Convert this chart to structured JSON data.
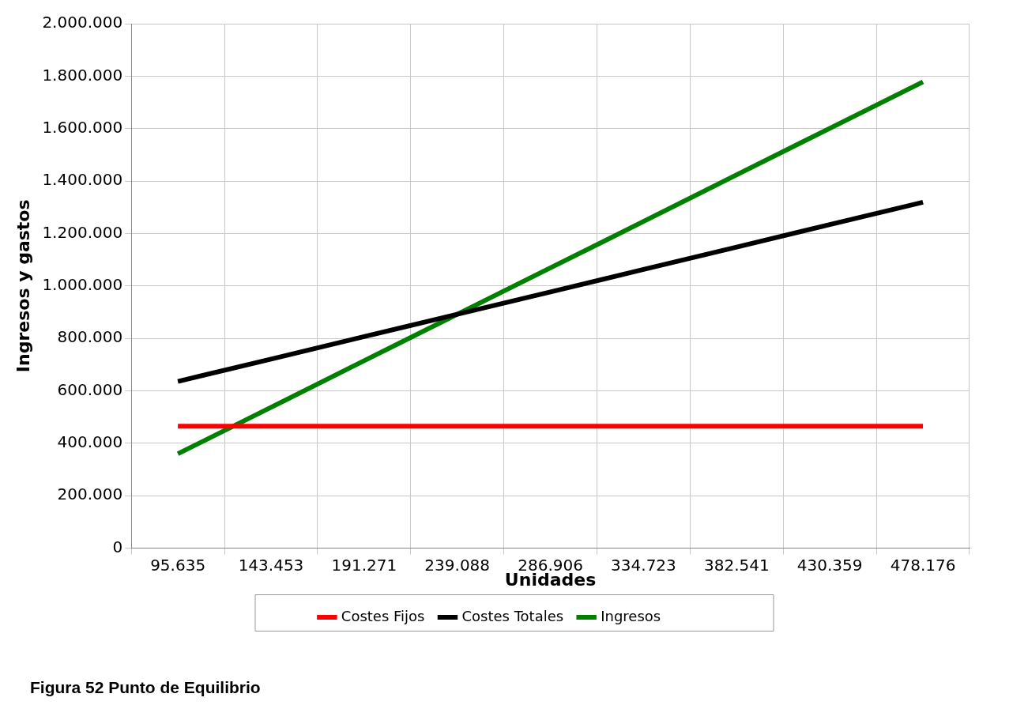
{
  "chart_data": {
    "type": "line",
    "xlabel": "Unidades",
    "ylabel": "Ingresos y gastos",
    "categories": [
      "95.635",
      "143.453",
      "191.271",
      "239.088",
      "286.906",
      "334.723",
      "382.541",
      "430.359",
      "478.176"
    ],
    "series": [
      {
        "name": "Costes Fijos",
        "color": "#ff0000",
        "values": [
          465000,
          465000,
          465000,
          465000,
          465000,
          465000,
          465000,
          465000,
          465000
        ]
      },
      {
        "name": "Costes Totales",
        "color": "#000000",
        "values": [
          636000,
          721000,
          807000,
          892000,
          977000,
          1063000,
          1148000,
          1234000,
          1319000
        ]
      },
      {
        "name": "Ingresos",
        "color": "#008000",
        "values": [
          360000,
          537000,
          715000,
          892000,
          1069000,
          1246000,
          1424000,
          1601000,
          1778000
        ]
      }
    ],
    "ylim": [
      0,
      2000000
    ],
    "yticks": [
      0,
      {
        "value": 200000,
        "label": "200.000"
      },
      {
        "value": 400000,
        "label": "400.000"
      },
      {
        "value": 600000,
        "label": "600.000"
      },
      {
        "value": 800000,
        "label": "800.000"
      },
      {
        "value": 1000000,
        "label": "1.000.000"
      },
      {
        "value": 1200000,
        "label": "1.200.000"
      },
      {
        "value": 1400000,
        "label": "1.400.000"
      },
      {
        "value": 1600000,
        "label": "1.600.000"
      },
      {
        "value": 1800000,
        "label": "1.800.000"
      },
      {
        "value": 2000000,
        "label": "2.000.000"
      }
    ],
    "grid": true,
    "legend": "bottom",
    "marker": "none",
    "line_style": "solid",
    "annotations": [
      "Figura 52 Punto de Equilibrio"
    ]
  }
}
